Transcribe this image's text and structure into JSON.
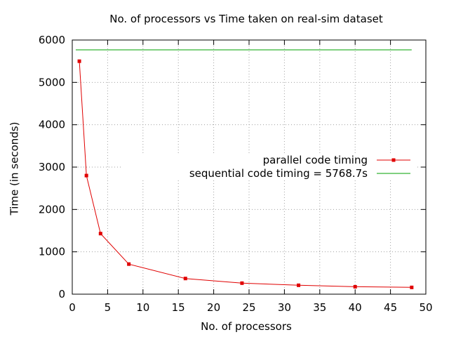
{
  "chart_data": {
    "type": "line",
    "title": "No. of processors vs Time taken on real-sim dataset",
    "xlabel": "No. of processors",
    "ylabel": "Time (in seconds)",
    "xlim": [
      0,
      50
    ],
    "ylim": [
      0,
      6000
    ],
    "x_ticks": [
      "0",
      "5",
      "10",
      "15",
      "20",
      "25",
      "30",
      "35",
      "40",
      "45",
      "50"
    ],
    "y_ticks": [
      "0",
      "1000",
      "2000",
      "3000",
      "4000",
      "5000",
      "6000"
    ],
    "grid": true,
    "legend_position": "right",
    "series": [
      {
        "name": "parallel code timing",
        "color": "#e00000",
        "marker": "square",
        "x": [
          1,
          2,
          4,
          8,
          16,
          24,
          32,
          40,
          48
        ],
        "y": [
          5500,
          2800,
          1430,
          710,
          370,
          260,
          210,
          175,
          160
        ]
      },
      {
        "name": "sequential code timing = 5768.7s",
        "color": "#00a000",
        "marker": "none",
        "x": [
          0.5,
          48
        ],
        "y": [
          5768.7,
          5768.7
        ]
      }
    ]
  }
}
